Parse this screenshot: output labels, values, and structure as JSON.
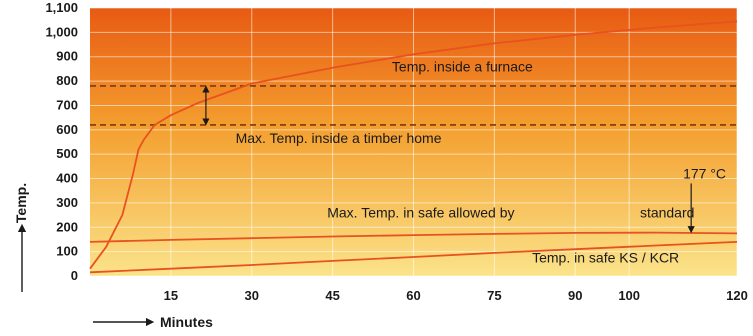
{
  "chart_data": {
    "type": "line",
    "xlabel": "Minutes",
    "ylabel": "Temp.",
    "xlim": [
      0,
      120
    ],
    "ylim": [
      0,
      1100
    ],
    "x_ticks": [
      15,
      30,
      45,
      60,
      75,
      90,
      100,
      120
    ],
    "y_ticks": [
      0,
      100,
      200,
      300,
      400,
      500,
      600,
      700,
      800,
      900,
      1000,
      1100
    ],
    "y_tick_labels": [
      "0",
      "100",
      "200",
      "300",
      "400",
      "500",
      "600",
      "700",
      "800",
      "900",
      "1,000",
      "1,100"
    ],
    "grid": true,
    "colors": {
      "line": "#e8521e",
      "dashed": "#7a3a10",
      "bg_top": "#e85a12",
      "bg_mid": "#f4a030",
      "bg_bottom": "#fbe38a"
    },
    "series": [
      {
        "name": "Temp. inside a furnace",
        "x": [
          0,
          3,
          6,
          8,
          9,
          10,
          12,
          15,
          20,
          30,
          45,
          60,
          75,
          90,
          105,
          120
        ],
        "y": [
          30,
          120,
          250,
          420,
          520,
          560,
          620,
          660,
          710,
          790,
          855,
          910,
          955,
          990,
          1020,
          1045
        ]
      },
      {
        "name": "Max. Temp. in safe allowed by standard",
        "x": [
          0,
          15,
          30,
          45,
          60,
          75,
          90,
          105,
          120
        ],
        "y": [
          140,
          148,
          155,
          162,
          168,
          173,
          177,
          178,
          175
        ]
      },
      {
        "name": "Temp. in safe KS / KCR",
        "x": [
          0,
          15,
          30,
          45,
          60,
          75,
          90,
          105,
          120
        ],
        "y": [
          15,
          30,
          45,
          62,
          78,
          95,
          110,
          125,
          140
        ]
      }
    ],
    "reference_lines": [
      {
        "y": 780,
        "style": "dashed"
      },
      {
        "y": 620,
        "style": "dashed"
      }
    ],
    "annotations": [
      {
        "text": "Temp. inside a furnace",
        "x": 56,
        "y": 840
      },
      {
        "text": "Max. Temp. inside a timber home",
        "x": 27,
        "y": 545
      },
      {
        "text": "Max. Temp. in safe allowed by",
        "x": 44,
        "y": 240
      },
      {
        "text": "standard",
        "x": 102,
        "y": 240
      },
      {
        "text": "177 °C",
        "x": 110,
        "y": 400
      },
      {
        "text": "Temp. in safe KS / KCR",
        "x": 82,
        "y": 55
      }
    ]
  }
}
